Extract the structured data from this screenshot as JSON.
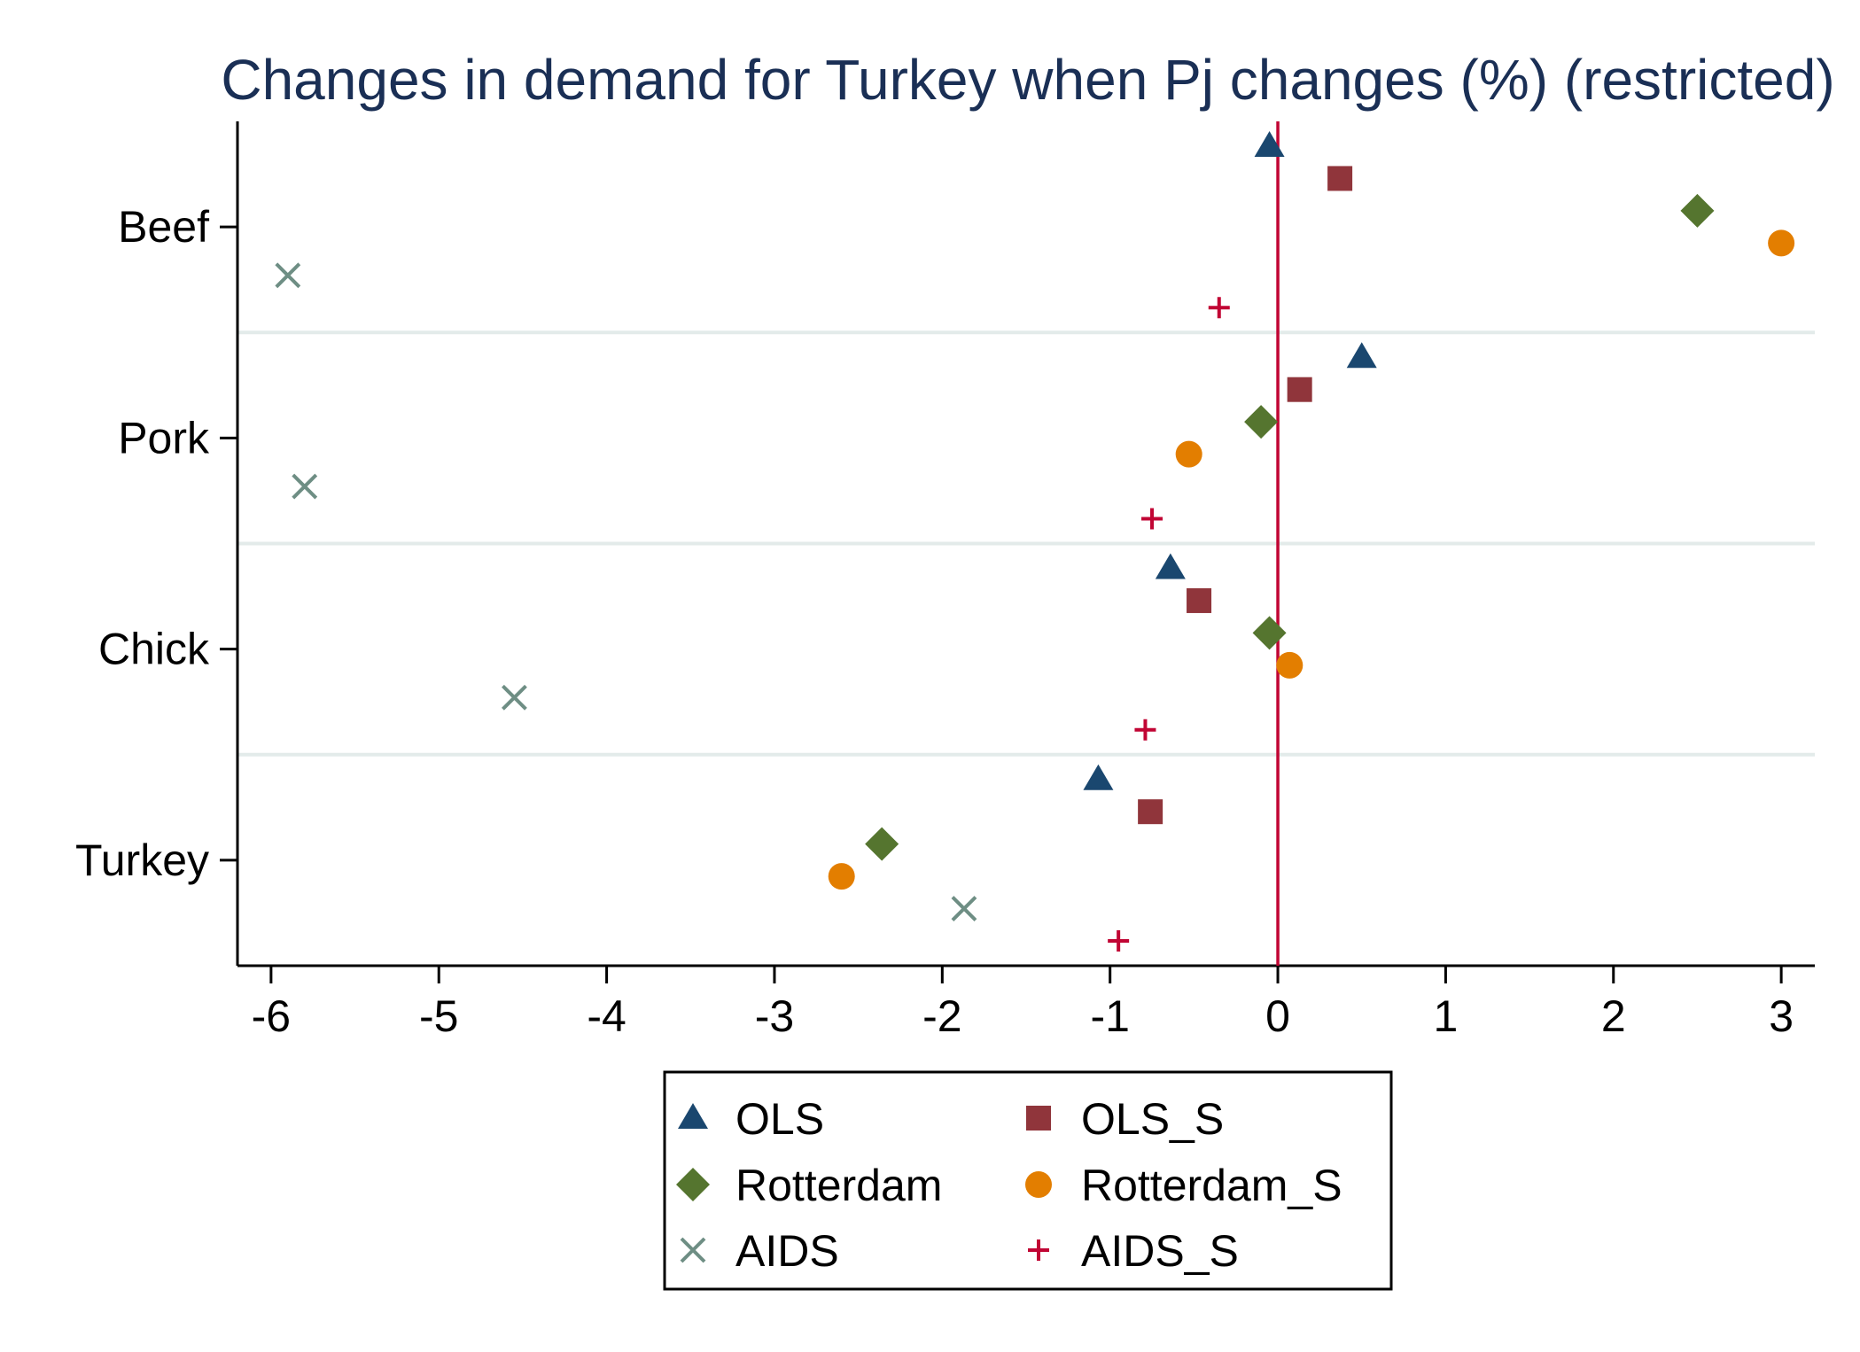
{
  "chart_data": {
    "type": "scatter",
    "title": "Changes in demand for Turkey when Pj changes (%) (restricted)",
    "xlabel": "",
    "ylabel": "",
    "xlim": [
      -6.2,
      3.2
    ],
    "x_ticks": [
      -6,
      -5,
      -4,
      -3,
      -2,
      -1,
      0,
      1,
      2,
      3
    ],
    "x_tick_labels": [
      "-6",
      "-5",
      "-4",
      "-3",
      "-2",
      "-1",
      "0",
      "1",
      "2",
      "3"
    ],
    "categories": [
      "Beef",
      "Pork",
      "Chick",
      "Turkey"
    ],
    "reference_line": 0,
    "grid": "horizontal separators between categories",
    "legend_placement": "bottom",
    "series": [
      {
        "name": "OLS",
        "marker": "triangle",
        "color": "#1a476f",
        "values": [
          -0.05,
          0.5,
          -0.64,
          -1.07
        ]
      },
      {
        "name": "OLS_S",
        "marker": "square",
        "color": "#90353b",
        "values": [
          0.37,
          0.13,
          -0.47,
          -0.76
        ]
      },
      {
        "name": "Rotterdam",
        "marker": "diamond",
        "color": "#55752f",
        "values": [
          2.5,
          -0.1,
          -0.05,
          -2.36
        ]
      },
      {
        "name": "Rotterdam_S",
        "marker": "circle",
        "color": "#e37e00",
        "values": [
          3.0,
          -0.53,
          0.07,
          -2.6
        ]
      },
      {
        "name": "AIDS",
        "marker": "x",
        "color": "#6e8e84",
        "values": [
          -5.9,
          -5.8,
          -4.55,
          -1.87
        ]
      },
      {
        "name": "AIDS_S",
        "marker": "plus",
        "color": "#c10534",
        "values": [
          -0.35,
          -0.75,
          -0.79,
          -0.95
        ]
      }
    ]
  }
}
